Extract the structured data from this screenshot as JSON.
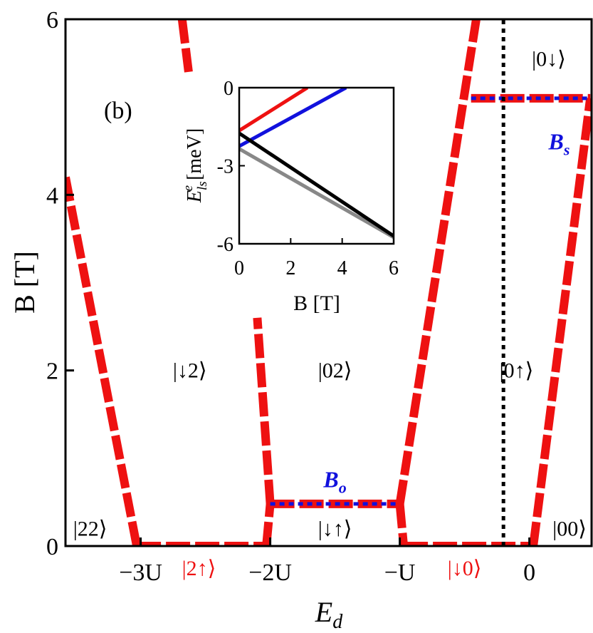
{
  "panel_label": "(b)",
  "colors": {
    "boundary": "#ee1111",
    "dotted": "#1111dd",
    "vline": "#000000",
    "label_red": "#ee1111",
    "label_blue": "#1111dd"
  },
  "chart_data": [
    {
      "type": "line",
      "xlabel": "E_d",
      "ylabel": "B [T]",
      "xlim": [
        -3.58,
        0.48
      ],
      "ylim": [
        0,
        6
      ],
      "x_ticks": [
        {
          "value": -3,
          "label": "−3U"
        },
        {
          "value": -2,
          "label": "−2U"
        },
        {
          "value": -1,
          "label": "−U"
        },
        {
          "value": 0,
          "label": "0"
        }
      ],
      "y_ticks": [
        {
          "value": 0,
          "label": "0"
        },
        {
          "value": 2,
          "label": "2"
        },
        {
          "value": 4,
          "label": "4"
        },
        {
          "value": 6,
          "label": "6"
        }
      ],
      "series": [
        {
          "style": "dashed-red",
          "x": [
            -3.58,
            -3.03
          ],
          "y": [
            4.2,
            0
          ]
        },
        {
          "style": "dashed-red",
          "x": [
            -3.03,
            -2.03
          ],
          "y": [
            0,
            0
          ]
        },
        {
          "style": "dashed-red",
          "x": [
            -2.03,
            -2.0
          ],
          "y": [
            0,
            0.48
          ]
        },
        {
          "style": "dashed-red",
          "x": [
            -2.0,
            -2.1
          ],
          "y": [
            0.48,
            2.6
          ]
        },
        {
          "style": "dashed-red",
          "x": [
            -2.0,
            -1.0
          ],
          "y": [
            0.48,
            0.48
          ]
        },
        {
          "style": "dashed-red",
          "x": [
            -1.0,
            -0.97
          ],
          "y": [
            0.48,
            0
          ]
        },
        {
          "style": "dashed-red",
          "x": [
            -0.97,
            0.03
          ],
          "y": [
            0,
            0
          ]
        },
        {
          "style": "dashed-red",
          "x": [
            -1.0,
            -0.41
          ],
          "y": [
            0.48,
            6.0
          ]
        },
        {
          "style": "dashed-red",
          "x": [
            0.03,
            0.47
          ],
          "y": [
            0,
            5.1
          ]
        },
        {
          "style": "dashed-red",
          "x": [
            -0.45,
            0.47
          ],
          "y": [
            5.1,
            5.1
          ]
        },
        {
          "style": "dashed-red",
          "x": [
            -2.68,
            -2.63
          ],
          "y": [
            6.0,
            5.4
          ]
        },
        {
          "style": "dotted-blue",
          "x": [
            -2.0,
            -1.0
          ],
          "y": [
            0.48,
            0.48
          ]
        },
        {
          "style": "dotted-blue",
          "x": [
            -0.45,
            0.47
          ],
          "y": [
            5.1,
            5.1
          ]
        },
        {
          "style": "dotted-black",
          "x": [
            -0.2,
            -0.2
          ],
          "y": [
            0,
            6
          ]
        }
      ],
      "region_labels": [
        {
          "text": "|22⟩",
          "x": -3.39,
          "y": 0.2,
          "color": "black"
        },
        {
          "text": "|↓2⟩",
          "x": -2.62,
          "y": 2.0,
          "color": "black"
        },
        {
          "text": "|02⟩",
          "x": -1.5,
          "y": 2.0,
          "color": "black"
        },
        {
          "text": "|0↑⟩",
          "x": -0.1,
          "y": 2.0,
          "color": "black"
        },
        {
          "text": "|0↓⟩",
          "x": 0.15,
          "y": 5.55,
          "color": "black"
        },
        {
          "text": "|↓↑⟩",
          "x": -1.5,
          "y": 0.2,
          "color": "black"
        },
        {
          "text": "|00⟩",
          "x": 0.31,
          "y": 0.2,
          "color": "black"
        },
        {
          "text": "|2↑⟩",
          "x": -2.55,
          "y": -0.25,
          "color": "red"
        },
        {
          "text": "|↓0⟩",
          "x": -0.5,
          "y": -0.25,
          "color": "red"
        },
        {
          "text": "B_o",
          "x": -1.5,
          "y": 0.75,
          "color": "blue"
        },
        {
          "text": "B_s",
          "x": 0.23,
          "y": 4.6,
          "color": "blue"
        }
      ]
    },
    {
      "type": "line",
      "role": "inset",
      "xlabel": "B [T]",
      "ylabel": "E^e_ls [meV]",
      "xlim": [
        0,
        6
      ],
      "ylim": [
        -6,
        0
      ],
      "x_ticks": [
        {
          "value": 0,
          "label": "0"
        },
        {
          "value": 2,
          "label": "2"
        },
        {
          "value": 4,
          "label": "4"
        },
        {
          "value": 6,
          "label": "6"
        }
      ],
      "y_ticks": [
        {
          "value": 0,
          "label": "0"
        },
        {
          "value": -3,
          "label": "-3"
        },
        {
          "value": -6,
          "label": "-6"
        }
      ],
      "series": [
        {
          "color": "#ee1111",
          "x": [
            0,
            2.65
          ],
          "y": [
            -1.65,
            0
          ]
        },
        {
          "color": "#1111dd",
          "x": [
            0,
            4.15
          ],
          "y": [
            -2.25,
            0
          ]
        },
        {
          "color": "#888888",
          "x": [
            0,
            6
          ],
          "y": [
            -2.35,
            -5.75
          ]
        },
        {
          "color": "#000000",
          "x": [
            0,
            6
          ],
          "y": [
            -1.75,
            -5.7
          ]
        }
      ]
    }
  ]
}
